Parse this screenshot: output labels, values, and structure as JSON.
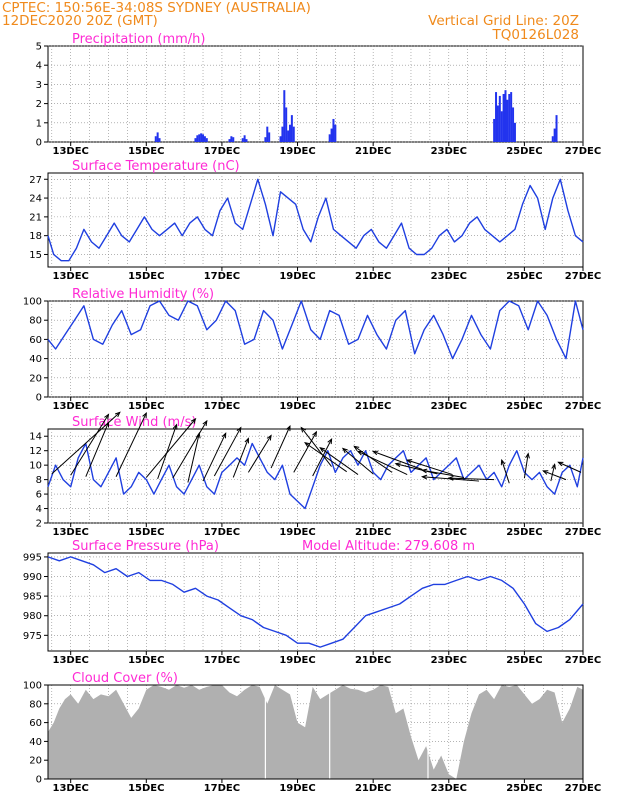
{
  "header": {
    "left_line1": "CPTEC:   150:56E-34:08S   SYDNEY (AUSTRALIA)",
    "left_line2": "12DEC2020 20Z (GMT)",
    "right_line1": "Vertical Grid Line: 20Z",
    "right_line2": "TQ0126L028"
  },
  "colors": {
    "header": "#f08a1c",
    "title": "#ff2ad4",
    "line": "#1f3fe0",
    "bars": "#2233ee",
    "cloud": "#b0b0b0"
  },
  "chart_data": [
    {
      "type": "bar",
      "title": "Precipitation (mm/h)",
      "ylim": [
        0,
        5
      ],
      "yticks": [
        "0",
        "1",
        "2",
        "3",
        "4",
        "5"
      ],
      "xticks": [
        "13DEC",
        "15DEC",
        "17DEC",
        "19DEC",
        "21DEC",
        "23DEC",
        "25DEC",
        "27DEC"
      ],
      "x_unit": "days since 12DEC 20Z",
      "bars": [
        [
          2.85,
          0.3
        ],
        [
          2.9,
          0.5
        ],
        [
          2.95,
          0.2
        ],
        [
          3.9,
          0.2
        ],
        [
          3.95,
          0.35
        ],
        [
          4.0,
          0.4
        ],
        [
          4.05,
          0.45
        ],
        [
          4.1,
          0.4
        ],
        [
          4.15,
          0.3
        ],
        [
          4.2,
          0.2
        ],
        [
          4.8,
          0.15
        ],
        [
          4.85,
          0.3
        ],
        [
          4.9,
          0.25
        ],
        [
          5.15,
          0.2
        ],
        [
          5.2,
          0.35
        ],
        [
          5.25,
          0.15
        ],
        [
          5.75,
          0.25
        ],
        [
          5.8,
          0.8
        ],
        [
          5.85,
          0.5
        ],
        [
          6.15,
          0.3
        ],
        [
          6.2,
          0.8
        ],
        [
          6.25,
          2.7
        ],
        [
          6.3,
          1.8
        ],
        [
          6.35,
          0.6
        ],
        [
          6.4,
          0.9
        ],
        [
          6.45,
          1.4
        ],
        [
          6.5,
          0.8
        ],
        [
          7.45,
          0.4
        ],
        [
          7.5,
          0.7
        ],
        [
          7.55,
          1.2
        ],
        [
          7.6,
          0.9
        ],
        [
          11.8,
          1.2
        ],
        [
          11.85,
          2.6
        ],
        [
          11.9,
          1.9
        ],
        [
          11.95,
          2.4
        ],
        [
          12.0,
          1.6
        ],
        [
          12.05,
          2.5
        ],
        [
          12.1,
          2.7
        ],
        [
          12.15,
          2.2
        ],
        [
          12.2,
          2.5
        ],
        [
          12.25,
          2.6
        ],
        [
          12.3,
          1.8
        ],
        [
          12.35,
          1.0
        ],
        [
          13.35,
          0.3
        ],
        [
          13.4,
          0.7
        ],
        [
          13.45,
          1.4
        ]
      ]
    },
    {
      "type": "line",
      "title": "Surface Temperature (nC)",
      "ylim": [
        13,
        28
      ],
      "yticks": [
        "15",
        "18",
        "21",
        "24",
        "27"
      ],
      "xticks": [
        "13DEC",
        "15DEC",
        "17DEC",
        "19DEC",
        "21DEC",
        "23DEC",
        "25DEC",
        "27DEC"
      ],
      "x_unit": "days since 12DEC 20Z",
      "x": [
        0,
        0.15,
        0.35,
        0.55,
        0.75,
        0.95,
        1.15,
        1.35,
        1.55,
        1.75,
        1.95,
        2.15,
        2.35,
        2.55,
        2.75,
        2.95,
        3.15,
        3.35,
        3.55,
        3.75,
        3.95,
        4.15,
        4.35,
        4.55,
        4.75,
        4.95,
        5.15,
        5.35,
        5.55,
        5.75,
        5.95,
        6.15,
        6.35,
        6.55,
        6.75,
        6.95,
        7.15,
        7.35,
        7.55,
        7.75,
        7.95,
        8.15,
        8.35,
        8.55,
        8.75,
        8.95,
        9.15,
        9.35,
        9.55,
        9.75,
        9.95,
        10.15,
        10.35,
        10.55,
        10.75,
        10.95,
        11.15,
        11.35,
        11.55,
        11.75,
        11.95,
        12.15,
        12.35,
        12.55,
        12.75,
        12.95,
        13.15,
        13.35,
        13.55,
        13.75,
        13.95,
        14.15
      ],
      "y": [
        18,
        15,
        14,
        14,
        16,
        19,
        17,
        16,
        18,
        20,
        18,
        17,
        19,
        21,
        19,
        18,
        19,
        20,
        18,
        20,
        21,
        19,
        18,
        22,
        24,
        20,
        19,
        23,
        27,
        23,
        18,
        25,
        24,
        23,
        19,
        17,
        21,
        24,
        19,
        18,
        17,
        16,
        18,
        19,
        17,
        16,
        18,
        20,
        16,
        15,
        15,
        16,
        18,
        19,
        17,
        18,
        20,
        21,
        19,
        18,
        17,
        18,
        19,
        23,
        26,
        24,
        19,
        24,
        27,
        22,
        18,
        17
      ]
    },
    {
      "type": "line",
      "title": "Relative Humidity (%)",
      "ylim": [
        0,
        100
      ],
      "yticks": [
        "0",
        "20",
        "40",
        "60",
        "80",
        "100"
      ],
      "xticks": [
        "13DEC",
        "15DEC",
        "17DEC",
        "19DEC",
        "21DEC",
        "23DEC",
        "25DEC",
        "27DEC"
      ],
      "x_unit": "days since 12DEC 20Z",
      "x": [
        0,
        0.2,
        0.45,
        0.7,
        0.95,
        1.2,
        1.45,
        1.7,
        1.95,
        2.2,
        2.45,
        2.7,
        2.95,
        3.2,
        3.45,
        3.7,
        3.95,
        4.2,
        4.45,
        4.7,
        4.95,
        5.2,
        5.45,
        5.7,
        5.95,
        6.2,
        6.45,
        6.7,
        6.95,
        7.2,
        7.45,
        7.7,
        7.95,
        8.2,
        8.45,
        8.7,
        8.95,
        9.2,
        9.45,
        9.7,
        9.95,
        10.2,
        10.45,
        10.7,
        10.95,
        11.2,
        11.45,
        11.7,
        11.95,
        12.2,
        12.45,
        12.7,
        12.95,
        13.2,
        13.45,
        13.7,
        13.95,
        14.15
      ],
      "y": [
        60,
        50,
        65,
        80,
        95,
        60,
        55,
        75,
        90,
        65,
        70,
        95,
        100,
        85,
        80,
        100,
        95,
        70,
        80,
        100,
        90,
        55,
        60,
        90,
        80,
        50,
        75,
        100,
        70,
        60,
        90,
        85,
        55,
        60,
        85,
        65,
        50,
        80,
        90,
        45,
        70,
        85,
        65,
        40,
        60,
        85,
        65,
        50,
        90,
        100,
        95,
        70,
        100,
        85,
        60,
        40,
        100,
        70
      ]
    },
    {
      "type": "line",
      "title": "Surface Wind (m/s)",
      "ylim": [
        2,
        15
      ],
      "yticks": [
        "2",
        "4",
        "6",
        "8",
        "10",
        "12",
        "14"
      ],
      "xticks": [
        "13DEC",
        "15DEC",
        "17DEC",
        "19DEC",
        "21DEC",
        "23DEC",
        "25DEC",
        "27DEC"
      ],
      "x_unit": "days since 12DEC 20Z",
      "x": [
        0,
        0.2,
        0.4,
        0.6,
        0.8,
        1.0,
        1.2,
        1.4,
        1.6,
        1.8,
        2.0,
        2.2,
        2.4,
        2.6,
        2.8,
        3.0,
        3.2,
        3.4,
        3.6,
        3.8,
        4.0,
        4.2,
        4.4,
        4.6,
        4.8,
        5.0,
        5.2,
        5.4,
        5.6,
        5.8,
        6.0,
        6.2,
        6.4,
        6.6,
        6.8,
        7.0,
        7.2,
        7.4,
        7.6,
        7.8,
        8.0,
        8.2,
        8.4,
        8.6,
        8.8,
        9.0,
        9.2,
        9.4,
        9.6,
        9.8,
        10.0,
        10.2,
        10.4,
        10.6,
        10.8,
        11.0,
        11.2,
        11.4,
        11.6,
        11.8,
        12.0,
        12.2,
        12.4,
        12.6,
        12.8,
        13.0,
        13.2,
        13.4,
        13.6,
        13.8,
        14.0,
        14.15
      ],
      "y": [
        7,
        10,
        8,
        7,
        11,
        13,
        8,
        7,
        9,
        11,
        6,
        7,
        9,
        8,
        6,
        8,
        10,
        7,
        6,
        8,
        10,
        7,
        6,
        9,
        10,
        11,
        10,
        13,
        11,
        9,
        8,
        10,
        6,
        5,
        4,
        7,
        10,
        12,
        9,
        11,
        12,
        10,
        12,
        9,
        8,
        10,
        11,
        12,
        9,
        10,
        11,
        8,
        9,
        10,
        11,
        8,
        9,
        10,
        8,
        9,
        7,
        10,
        12,
        9,
        8,
        9,
        7,
        6,
        9,
        10,
        7,
        11
      ],
      "arrows": [
        [
          0.1,
          8.8,
          1.8,
          8.5
        ],
        [
          0.6,
          8.6,
          1.0,
          8.4
        ],
        [
          1.0,
          8.4,
          0.6,
          7.5
        ],
        [
          1.8,
          8.4,
          0.8,
          8.8
        ],
        [
          2.6,
          8.3,
          1.3,
          8.1
        ],
        [
          2.9,
          8.1,
          0.5,
          7.5
        ],
        [
          3.3,
          8.2,
          0.9,
          7.9
        ],
        [
          3.7,
          7.6,
          0.3,
          6.8
        ],
        [
          4.1,
          7.8,
          0.6,
          6.6
        ],
        [
          4.4,
          8.5,
          0.7,
          6.7
        ],
        [
          4.9,
          8.3,
          0.4,
          5.4
        ],
        [
          5.3,
          9.0,
          0.6,
          5.1
        ],
        [
          5.9,
          9.6,
          0.5,
          5.8
        ],
        [
          6.5,
          9.0,
          0.6,
          5.6
        ],
        [
          7.0,
          8.5,
          0.5,
          5.1
        ],
        [
          7.5,
          9.8,
          -0.8,
          5.4
        ],
        [
          7.9,
          9.1,
          -1.1,
          4.0
        ],
        [
          8.2,
          8.7,
          -1.0,
          3.7
        ],
        [
          8.6,
          8.8,
          -0.8,
          3.5
        ],
        [
          9.1,
          9.0,
          -1.0,
          3.6
        ],
        [
          9.5,
          8.7,
          -1.3,
          3.2
        ],
        [
          9.9,
          9.4,
          -1.3,
          2.5
        ],
        [
          10.3,
          8.8,
          -1.1,
          1.4
        ],
        [
          10.7,
          8.7,
          -1.2,
          2.0
        ],
        [
          11.0,
          8.3,
          -1.1,
          1.0
        ],
        [
          11.4,
          7.8,
          -1.5,
          0.6
        ],
        [
          11.8,
          8.0,
          -1.2,
          0.2
        ],
        [
          12.2,
          7.5,
          -0.2,
          3.2
        ],
        [
          12.6,
          8.2,
          0.1,
          3.4
        ],
        [
          13.3,
          7.8,
          0.1,
          2.3
        ],
        [
          13.7,
          8.0,
          -0.6,
          1.2
        ],
        [
          14.1,
          9.0,
          -0.6,
          1.4
        ]
      ]
    },
    {
      "type": "line",
      "title": "Surface Pressure (hPa)",
      "annotation": "Model Altitude: 279.608 m",
      "ylim": [
        971,
        996
      ],
      "yticks": [
        "975",
        "980",
        "985",
        "990",
        "995"
      ],
      "xticks": [
        "13DEC",
        "15DEC",
        "17DEC",
        "19DEC",
        "21DEC",
        "23DEC",
        "25DEC",
        "27DEC"
      ],
      "x_unit": "days since 12DEC 20Z",
      "x": [
        0,
        0.3,
        0.6,
        0.9,
        1.2,
        1.5,
        1.8,
        2.1,
        2.4,
        2.7,
        3.0,
        3.3,
        3.6,
        3.9,
        4.2,
        4.5,
        4.8,
        5.1,
        5.4,
        5.7,
        6.0,
        6.3,
        6.6,
        6.9,
        7.2,
        7.5,
        7.8,
        8.1,
        8.4,
        8.7,
        9.0,
        9.3,
        9.6,
        9.9,
        10.2,
        10.5,
        10.8,
        11.1,
        11.4,
        11.7,
        12.0,
        12.3,
        12.6,
        12.9,
        13.2,
        13.5,
        13.8,
        14.15
      ],
      "y": [
        995,
        994,
        995,
        994,
        993,
        991,
        992,
        990,
        991,
        989,
        989,
        988,
        986,
        987,
        985,
        984,
        982,
        980,
        979,
        977,
        976,
        975,
        973,
        973,
        972,
        973,
        974,
        977,
        980,
        981,
        982,
        983,
        985,
        987,
        988,
        988,
        989,
        990,
        989,
        990,
        989,
        987,
        983,
        978,
        976,
        977,
        979,
        983
      ]
    },
    {
      "type": "area",
      "title": "Cloud Cover (%)",
      "ylim": [
        0,
        100
      ],
      "yticks": [
        "0",
        "20",
        "40",
        "60",
        "80",
        "100"
      ],
      "xticks": [
        "13DEC",
        "15DEC",
        "17DEC",
        "19DEC",
        "21DEC",
        "23DEC",
        "25DEC",
        "27DEC"
      ],
      "x_unit": "days since 12DEC 20Z",
      "x": [
        0,
        0.15,
        0.3,
        0.45,
        0.6,
        0.8,
        1.0,
        1.2,
        1.4,
        1.6,
        1.8,
        2.0,
        2.2,
        2.4,
        2.6,
        2.8,
        3.0,
        3.2,
        3.4,
        3.6,
        3.8,
        4.0,
        4.2,
        4.4,
        4.6,
        4.8,
        5.0,
        5.2,
        5.4,
        5.6,
        5.8,
        6.0,
        6.2,
        6.4,
        6.6,
        6.8,
        7.0,
        7.2,
        7.4,
        7.6,
        7.8,
        8.0,
        8.2,
        8.4,
        8.6,
        8.8,
        9.0,
        9.2,
        9.4,
        9.6,
        9.8,
        10.0,
        10.2,
        10.4,
        10.6,
        10.8,
        11.0,
        11.2,
        11.4,
        11.6,
        11.8,
        12.0,
        12.2,
        12.4,
        12.6,
        12.8,
        13.0,
        13.2,
        13.4,
        13.6,
        13.8,
        14.0,
        14.15
      ],
      "y": [
        50,
        60,
        75,
        85,
        90,
        80,
        95,
        85,
        90,
        88,
        95,
        80,
        65,
        75,
        95,
        100,
        98,
        95,
        100,
        97,
        100,
        95,
        98,
        100,
        100,
        92,
        88,
        95,
        100,
        98,
        80,
        100,
        95,
        90,
        60,
        55,
        98,
        85,
        90,
        95,
        100,
        96,
        95,
        92,
        95,
        100,
        98,
        70,
        75,
        45,
        20,
        35,
        10,
        25,
        5,
        0,
        40,
        70,
        90,
        95,
        85,
        100,
        98,
        100,
        90,
        80,
        85,
        95,
        92,
        60,
        75,
        98,
        95
      ]
    }
  ]
}
